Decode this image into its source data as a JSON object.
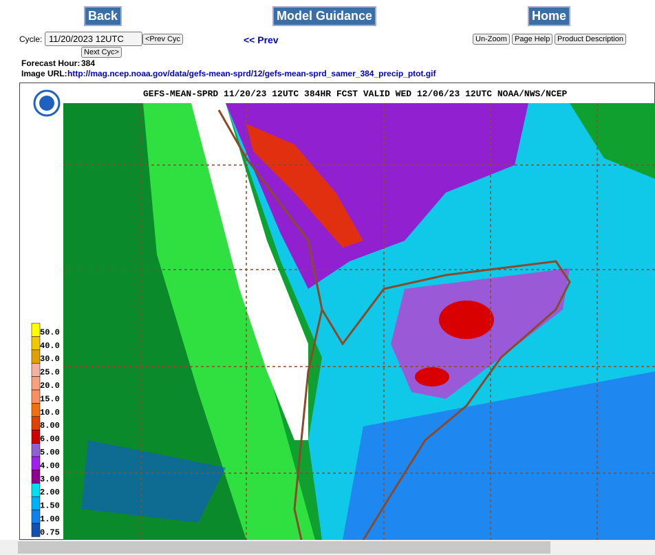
{
  "nav": {
    "back": "Back",
    "model_guidance": "Model Guidance",
    "home": "Home"
  },
  "controls": {
    "cycle_label": "Cycle:",
    "cycle_value": "11/20/2023 12UTC",
    "prev_cyc": "<Prev Cyc",
    "next_cyc": "Next Cyc>",
    "prev": "<< Prev",
    "un_zoom": "Un-Zoom",
    "page_help": "Page Help",
    "product_description": "Product Description"
  },
  "info": {
    "forecast_hour_label": "Forecast Hour:",
    "forecast_hour": "384",
    "image_url_label": "Image URL:",
    "image_url": "http://mag.ncep.noaa.gov/data/gefs-mean-sprd/12/gefs-mean-sprd_samer_384_precip_ptot.gif"
  },
  "map": {
    "title": "GEFS-MEAN-SPRD 11/20/23 12UTC 384HR FCST VALID WED 12/06/23 12UTC NOAA/NWS/NCEP",
    "legend": [
      {
        "label": "50.0",
        "color": "#ffff00"
      },
      {
        "label": "40.0",
        "color": "#f0c800"
      },
      {
        "label": "30.0",
        "color": "#e0a000"
      },
      {
        "label": "25.0",
        "color": "#f4b0a0"
      },
      {
        "label": "20.0",
        "color": "#f8a080"
      },
      {
        "label": "15.0",
        "color": "#f89060"
      },
      {
        "label": "10.0",
        "color": "#f07010"
      },
      {
        "label": "8.00",
        "color": "#e04000"
      },
      {
        "label": "6.00",
        "color": "#d00000"
      },
      {
        "label": "5.00",
        "color": "#9060d0"
      },
      {
        "label": "4.00",
        "color": "#a020f0"
      },
      {
        "label": "3.00",
        "color": "#900090"
      },
      {
        "label": "2.00",
        "color": "#00e0f0"
      },
      {
        "label": "1.50",
        "color": "#00b0f8"
      },
      {
        "label": "1.00",
        "color": "#1080f0"
      },
      {
        "label": "0.75",
        "color": "#1050b0"
      }
    ]
  }
}
